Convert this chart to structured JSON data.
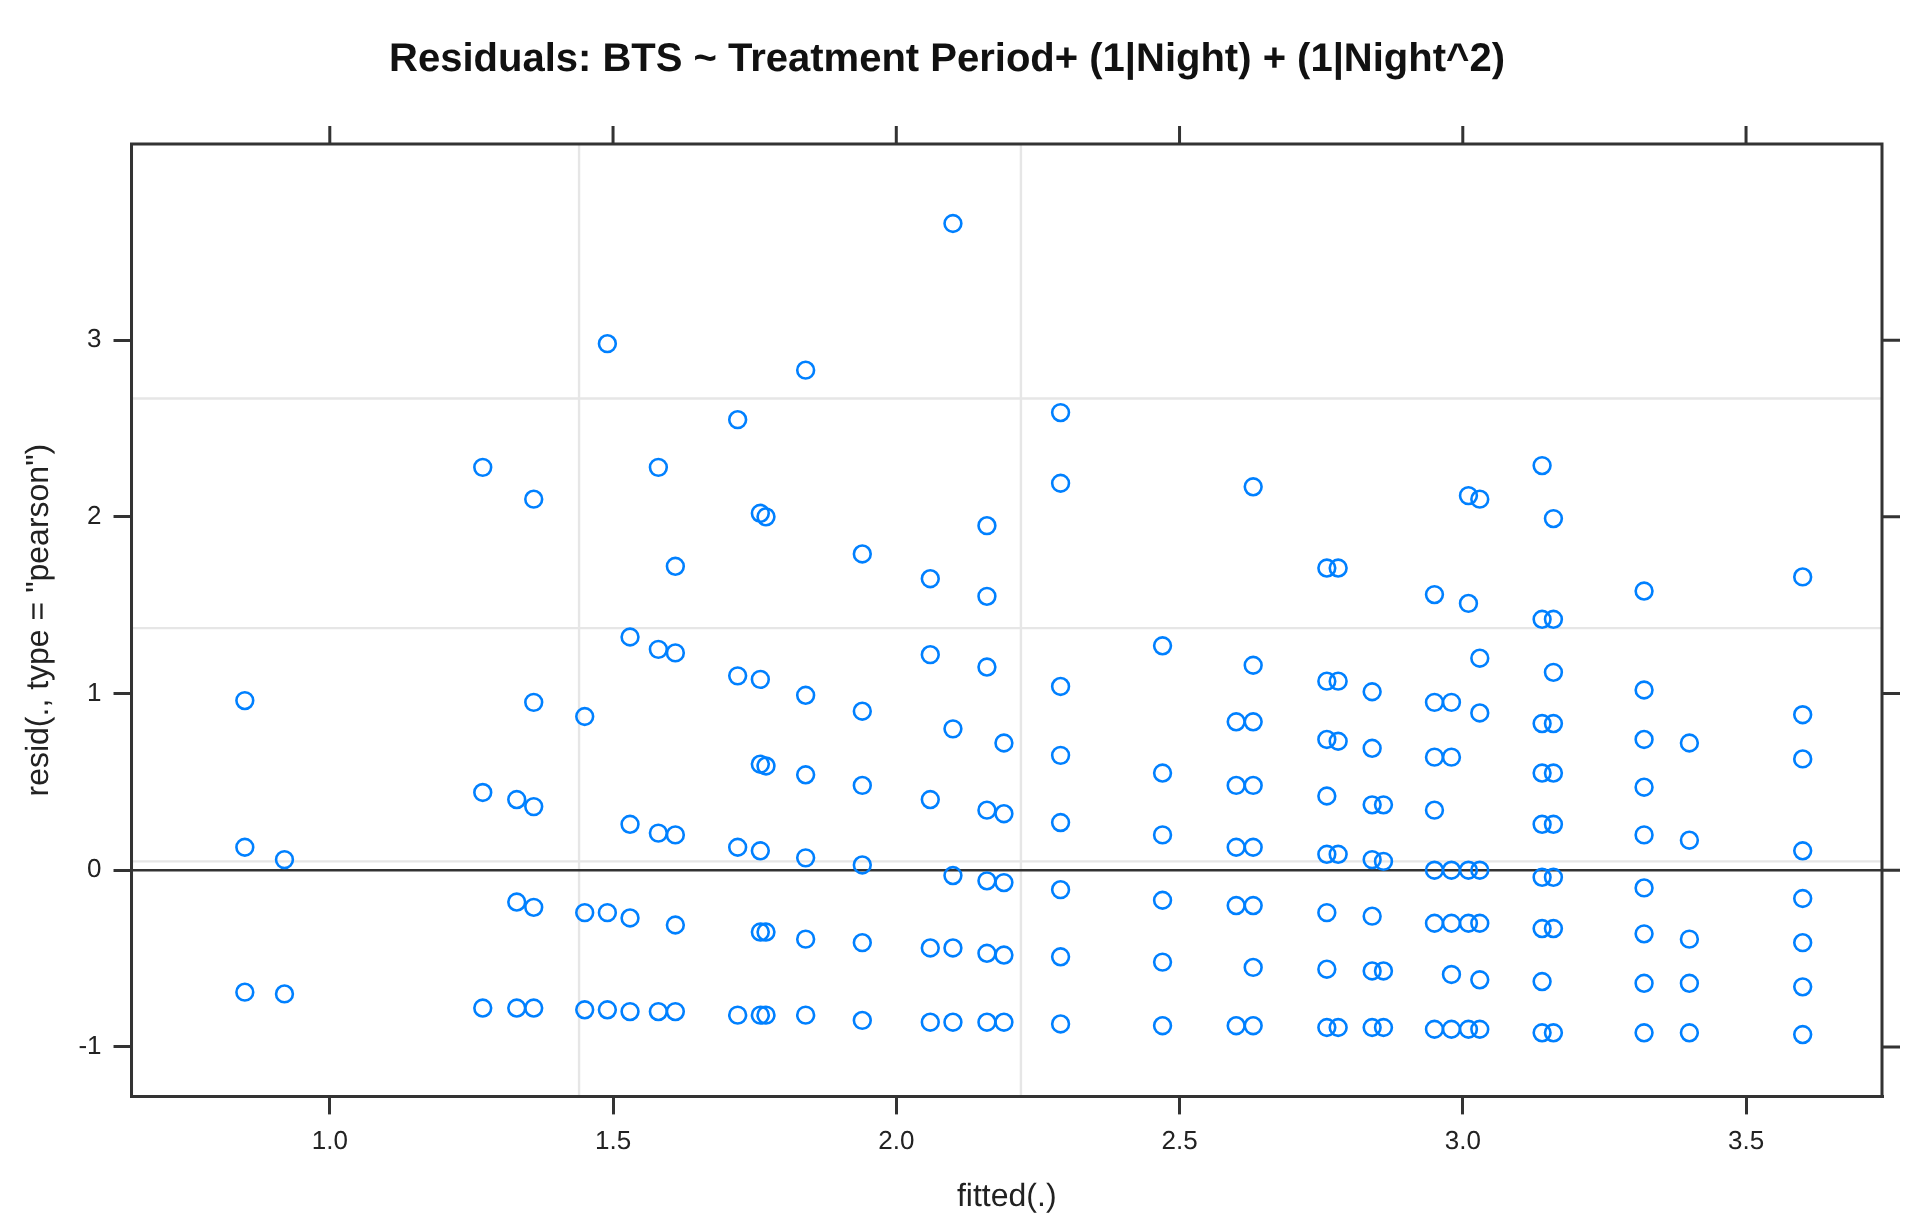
{
  "chart_data": {
    "type": "scatter",
    "title": "Residuals: BTS ~ Treatment Period+ (1|Night) + (1|Night^2)",
    "xlabel": "fitted(.)",
    "ylabel": "resid(., type = \"pearson\")",
    "xlim": [
      0.65,
      3.74
    ],
    "ylim": [
      -1.28,
      4.11
    ],
    "xticks": [
      {
        "value": 1,
        "label": "1.0"
      },
      1.5,
      {
        "value": 2,
        "label": "2.0"
      },
      2.5,
      {
        "value": 3,
        "label": "3.0"
      },
      3.5
    ],
    "yticks": [
      -1,
      0,
      1,
      2,
      3
    ],
    "marker": "circle",
    "color": "#0080ff",
    "ref_lines": [
      {
        "axis": "x",
        "value": 1.44,
        "color": "#e6e6e6"
      },
      {
        "axis": "x",
        "value": 2.22,
        "color": "#e6e6e6"
      },
      {
        "axis": "y",
        "value": 2.67,
        "color": "#e6e6e6"
      },
      {
        "axis": "y",
        "value": 1.37,
        "color": "#e6e6e6"
      },
      {
        "axis": "y",
        "value": 0.05,
        "color": "#e6e6e6"
      },
      {
        "axis": "y",
        "value": 0,
        "color": "#333333"
      }
    ],
    "x": [
      0.85,
      0.85,
      0.85,
      0.92,
      0.92,
      1.27,
      1.27,
      1.27,
      1.33,
      1.33,
      1.33,
      1.36,
      1.36,
      1.36,
      1.36,
      1.36,
      1.45,
      1.45,
      1.45,
      1.49,
      1.49,
      1.49,
      1.53,
      1.53,
      1.53,
      1.53,
      1.58,
      1.58,
      1.58,
      1.58,
      1.61,
      1.61,
      1.61,
      1.61,
      1.61,
      1.72,
      1.72,
      1.72,
      1.72,
      1.76,
      1.76,
      1.76,
      1.76,
      1.76,
      1.76,
      1.77,
      1.77,
      1.77,
      1.77,
      1.84,
      1.84,
      1.84,
      1.84,
      1.84,
      1.84,
      1.94,
      1.94,
      1.94,
      1.94,
      1.94,
      1.94,
      2.06,
      2.06,
      2.06,
      2.06,
      2.06,
      2.1,
      2.1,
      2.1,
      2.1,
      2.1,
      2.16,
      2.16,
      2.16,
      2.16,
      2.16,
      2.16,
      2.16,
      2.19,
      2.19,
      2.19,
      2.19,
      2.19,
      2.29,
      2.29,
      2.29,
      2.29,
      2.29,
      2.29,
      2.29,
      2.29,
      2.47,
      2.47,
      2.47,
      2.47,
      2.47,
      2.47,
      2.6,
      2.6,
      2.6,
      2.6,
      2.6,
      2.63,
      2.63,
      2.63,
      2.63,
      2.63,
      2.63,
      2.63,
      2.63,
      2.76,
      2.76,
      2.76,
      2.76,
      2.76,
      2.76,
      2.76,
      2.76,
      2.78,
      2.78,
      2.78,
      2.78,
      2.78,
      2.84,
      2.84,
      2.84,
      2.84,
      2.84,
      2.84,
      2.84,
      2.86,
      2.86,
      2.86,
      2.86,
      2.95,
      2.95,
      2.95,
      2.95,
      2.95,
      2.95,
      2.95,
      2.98,
      2.98,
      2.98,
      2.98,
      2.98,
      2.98,
      3.01,
      3.01,
      3.01,
      3.01,
      3.01,
      3.03,
      3.03,
      3.03,
      3.03,
      3.03,
      3.03,
      3.03,
      3.14,
      3.14,
      3.14,
      3.14,
      3.14,
      3.14,
      3.14,
      3.14,
      3.14,
      3.16,
      3.16,
      3.16,
      3.16,
      3.16,
      3.16,
      3.16,
      3.16,
      3.16,
      3.32,
      3.32,
      3.32,
      3.32,
      3.32,
      3.32,
      3.32,
      3.32,
      3.32,
      3.4,
      3.4,
      3.4,
      3.4,
      3.4,
      3.6,
      3.6,
      3.6,
      3.6,
      3.6,
      3.6,
      3.6,
      3.6
    ],
    "values": [
      0.96,
      0.13,
      -0.69,
      0.06,
      -0.7,
      2.28,
      0.44,
      -0.78,
      0.4,
      -0.18,
      -0.78,
      2.1,
      0.95,
      0.36,
      -0.21,
      -0.78,
      0.87,
      -0.24,
      -0.79,
      2.98,
      -0.24,
      -0.79,
      1.32,
      0.26,
      -0.27,
      -0.8,
      2.28,
      1.25,
      0.21,
      -0.8,
      1.72,
      1.23,
      0.2,
      -0.31,
      -0.8,
      2.55,
      1.1,
      0.13,
      -0.82,
      2.02,
      1.08,
      0.6,
      0.11,
      -0.35,
      -0.82,
      2.0,
      0.59,
      -0.35,
      -0.82,
      2.83,
      0.99,
      0.54,
      0.07,
      -0.39,
      -0.82,
      1.79,
      0.9,
      0.48,
      0.03,
      -0.41,
      -0.85,
      1.65,
      1.22,
      0.4,
      -0.44,
      -0.86,
      3.66,
      0.8,
      -0.03,
      -0.44,
      -0.86,
      1.95,
      1.55,
      1.15,
      0.34,
      -0.06,
      -0.47,
      -0.86,
      0.72,
      0.32,
      -0.07,
      -0.48,
      -0.86,
      2.59,
      2.19,
      1.04,
      0.65,
      0.27,
      -0.11,
      -0.49,
      -0.87,
      1.27,
      0.55,
      0.2,
      -0.17,
      -0.52,
      -0.88,
      0.84,
      0.48,
      0.13,
      -0.2,
      -0.88,
      2.17,
      1.16,
      0.84,
      0.48,
      0.13,
      -0.2,
      -0.55,
      -0.88,
      1.71,
      1.07,
      0.74,
      0.42,
      0.09,
      -0.24,
      -0.56,
      -0.89,
      1.71,
      1.07,
      0.73,
      0.09,
      -0.89,
      1.01,
      0.69,
      0.37,
      0.06,
      -0.26,
      -0.57,
      -0.89,
      0.37,
      0.05,
      -0.57,
      -0.89,
      1.56,
      0.95,
      0.64,
      0.34,
      0.0,
      -0.3,
      -0.9,
      0.95,
      0.64,
      0.0,
      -0.3,
      -0.59,
      -0.9,
      2.12,
      1.51,
      0.0,
      -0.3,
      -0.9,
      2.1,
      1.2,
      0.89,
      0.0,
      -0.3,
      -0.62,
      -0.9,
      2.29,
      1.42,
      0.83,
      0.55,
      0.26,
      -0.04,
      -0.33,
      -0.63,
      -0.92,
      1.99,
      1.42,
      1.12,
      0.83,
      0.55,
      0.26,
      -0.04,
      -0.33,
      -0.92,
      1.58,
      1.02,
      0.74,
      0.47,
      0.2,
      -0.1,
      -0.36,
      -0.64,
      -0.92,
      0.72,
      0.17,
      -0.39,
      -0.64,
      -0.92,
      1.66,
      0.88,
      0.63,
      0.11,
      -0.16,
      -0.41,
      -0.66,
      -0.93
    ]
  }
}
